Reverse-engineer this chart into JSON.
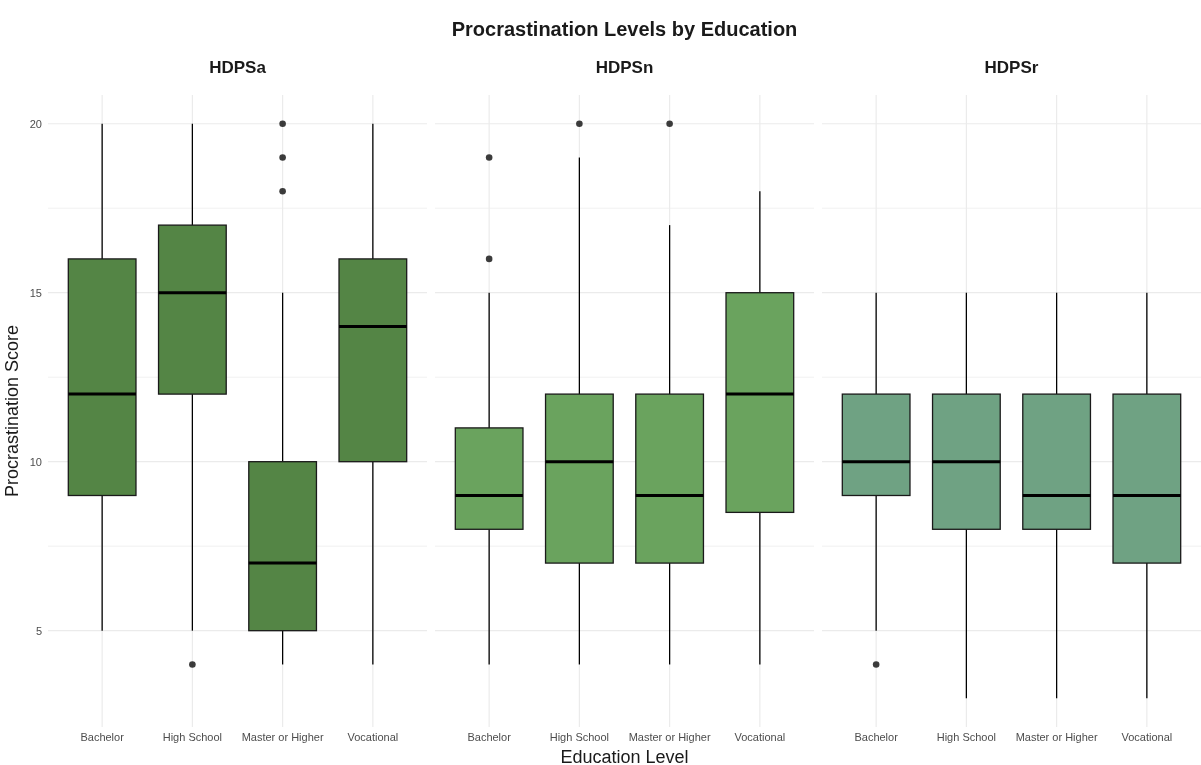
{
  "chart_data": [
    {
      "type": "box",
      "subtitle": "HDPSa",
      "ylabel": "Procrastination Score",
      "categories": [
        "Bachelor",
        "High School",
        "Master or Higher",
        "Vocational"
      ],
      "ylim": [
        2.15,
        20.85
      ],
      "yticks": [
        5,
        {
          "value": 7.5,
          "label": null
        },
        10,
        {
          "value": 12.5,
          "label": null
        },
        15,
        {
          "value": 17.5,
          "label": null
        },
        20
      ],
      "grid": true,
      "series": [
        {
          "color": "#548545",
          "boxes": [
            {
              "low": 5,
              "q1": 9,
              "median": 12,
              "q3": 16,
              "high": 20
            },
            {
              "low": 5,
              "q1": 12,
              "median": 15,
              "q3": 17,
              "high": 20,
              "outliers": [
                4
              ]
            },
            {
              "low": 4,
              "q1": 5,
              "median": 7,
              "q3": 10,
              "high": 15,
              "outliers": [
                18,
                19,
                20
              ]
            },
            {
              "low": 4,
              "q1": 10,
              "median": 14,
              "q3": 16,
              "high": 20
            }
          ]
        }
      ]
    },
    {
      "type": "box",
      "title": "Procrastination Levels by Education",
      "subtitle": "HDPSn",
      "xlabel": "Education Level",
      "categories": [
        "Bachelor",
        "High School",
        "Master or Higher",
        "Vocational"
      ],
      "ylim": [
        2.15,
        20.85
      ],
      "yticks": [
        5,
        {
          "value": 7.5,
          "label": null
        },
        10,
        {
          "value": 12.5,
          "label": null
        },
        15,
        {
          "value": 17.5,
          "label": null
        },
        20
      ],
      "grid": true,
      "tick_labels": "x",
      "series": [
        {
          "color": "#6aa35e",
          "boxes": [
            {
              "low": 4,
              "q1": 8,
              "median": 9,
              "q3": 11,
              "high": 15,
              "outliers": [
                16,
                19
              ]
            },
            {
              "low": 4,
              "q1": 7,
              "median": 10,
              "q3": 12,
              "high": 19,
              "outliers": [
                20
              ]
            },
            {
              "low": 4,
              "q1": 7,
              "median": 9,
              "q3": 12,
              "high": 17,
              "outliers": [
                20
              ]
            },
            {
              "low": 4,
              "q1": 8.5,
              "median": 12,
              "q3": 15,
              "high": 18
            }
          ]
        }
      ]
    },
    {
      "type": "box",
      "subtitle": "HDPSr",
      "categories": [
        "Bachelor",
        "High School",
        "Master or Higher",
        "Vocational"
      ],
      "ylim": [
        2.15,
        20.85
      ],
      "yticks": [
        5,
        {
          "value": 7.5,
          "label": null
        },
        10,
        {
          "value": 12.5,
          "label": null
        },
        15,
        {
          "value": 17.5,
          "label": null
        },
        20
      ],
      "grid": true,
      "tick_labels": "x",
      "series": [
        {
          "color": "#6fa283",
          "boxes": [
            {
              "low": 5,
              "q1": 9,
              "median": 10,
              "q3": 12,
              "high": 15,
              "outliers": [
                4
              ]
            },
            {
              "low": 3,
              "q1": 8,
              "median": 10,
              "q3": 12,
              "high": 15
            },
            {
              "low": 3,
              "q1": 8,
              "median": 9,
              "q3": 12,
              "high": 15
            },
            {
              "low": 3,
              "q1": 7,
              "median": 9,
              "q3": 12,
              "high": 15
            }
          ]
        }
      ]
    }
  ]
}
